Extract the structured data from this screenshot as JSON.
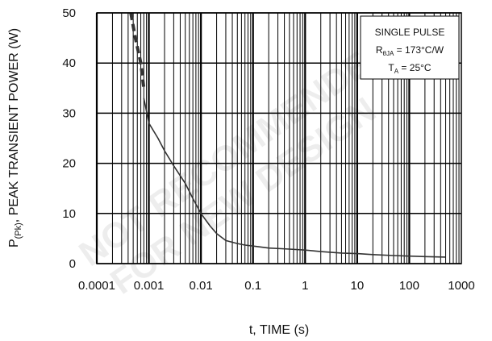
{
  "chart_data": {
    "type": "line",
    "x_scale": "log",
    "xlim": [
      0.0001,
      1000
    ],
    "ylim": [
      0,
      50
    ],
    "xlabel": "t, TIME (s)",
    "ylabel": {
      "prefix": "P",
      "subscript": "(Pk)",
      "suffix": ", PEAK TRANSIENT POWER (W)"
    },
    "x_ticks": [
      {
        "value": 0.0001,
        "label": "0.0001"
      },
      {
        "value": 0.001,
        "label": "0.001"
      },
      {
        "value": 0.01,
        "label": "0.01"
      },
      {
        "value": 0.1,
        "label": "0.1"
      },
      {
        "value": 1,
        "label": "1"
      },
      {
        "value": 10,
        "label": "10"
      },
      {
        "value": 100,
        "label": "100"
      },
      {
        "value": 1000,
        "label": "1000"
      }
    ],
    "y_ticks": [
      {
        "value": 0,
        "label": "0"
      },
      {
        "value": 10,
        "label": "10"
      },
      {
        "value": 20,
        "label": "20"
      },
      {
        "value": 30,
        "label": "30"
      },
      {
        "value": 40,
        "label": "40"
      },
      {
        "value": 50,
        "label": "50"
      }
    ],
    "grid": true,
    "legend": "none",
    "annotation": {
      "line1": "SINGLE PULSE",
      "line2": {
        "prefix": "R",
        "subscript": "θJA",
        "suffix": " = 173°C/W"
      },
      "line3": {
        "prefix": "T",
        "subscript": "A",
        "suffix": " = 25°C"
      },
      "placement": "top-right"
    },
    "series": [
      {
        "style": "dashed",
        "x": [
          0.00045,
          0.00055,
          0.0007,
          0.0008
        ],
        "y": [
          50,
          45,
          40,
          35
        ]
      },
      {
        "style": "solid",
        "x": [
          0.0008,
          0.001,
          0.0015,
          0.002,
          0.003,
          0.005,
          0.007,
          0.01,
          0.015,
          0.02,
          0.03,
          0.05,
          0.07,
          0.1,
          0.2,
          0.5,
          1,
          2,
          5,
          10,
          20,
          50,
          100,
          200,
          500
        ],
        "y": [
          33,
          28,
          25,
          22.5,
          19.5,
          16,
          13,
          10,
          7.5,
          6,
          4.6,
          4,
          3.7,
          3.5,
          3.1,
          2.9,
          2.7,
          2.4,
          2.1,
          2.0,
          1.8,
          1.6,
          1.5,
          1.4,
          1.3
        ]
      }
    ],
    "colors": {
      "line": "#333333",
      "grid": "#000000",
      "watermark": "#000000"
    },
    "watermark": [
      "NOT RECOMMENDED",
      "FOR NEW DESIGN"
    ]
  }
}
